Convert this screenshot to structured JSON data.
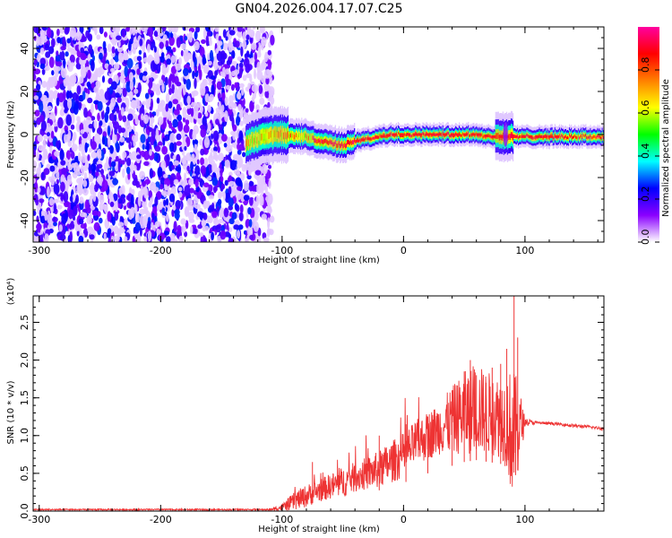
{
  "figure": {
    "title": "GN04.2026.004.17.07.C25"
  },
  "chart_data": [
    {
      "type": "heatmap",
      "title": "GN04.2026.004.17.07.C25",
      "xlabel": "Height of straight line (km)",
      "ylabel": "Frequency (Hz)",
      "xlim": [
        -305,
        165
      ],
      "ylim": [
        -50,
        50
      ],
      "x_ticks": [
        -300,
        -200,
        -100,
        0,
        100
      ],
      "y_ticks": [
        -40,
        -20,
        0,
        20,
        40
      ],
      "colorbar": {
        "label": "Normalized spectral amplitude",
        "range": [
          0,
          1
        ],
        "ticks": [
          "0.0",
          "0.2",
          "0.4",
          "0.6",
          "0.8"
        ],
        "colormap": [
          "#ffffff",
          "#8a00ff",
          "#0000ff",
          "#00ffff",
          "#00ff00",
          "#ffff00",
          "#ff8000",
          "#ff0000",
          "#ff00a0"
        ]
      },
      "regions": [
        {
          "name": "broadband noise",
          "x_range": [
            -305,
            -108
          ],
          "freq_range": [
            -50,
            50
          ],
          "amplitude": "0.05-0.35"
        },
        {
          "name": "signal band",
          "x_range": [
            -130,
            165
          ],
          "amplitude_peak": 0.95
        }
      ],
      "ridge": {
        "x": [
          -130,
          -115,
          -100,
          -90,
          -80,
          -70,
          -60,
          -50,
          -45,
          -40,
          -30,
          -20,
          -10,
          0,
          10,
          20,
          40,
          60,
          70,
          80,
          90,
          100,
          120,
          140,
          165
        ],
        "freq": [
          -4,
          -1,
          0,
          -1,
          -1,
          -3,
          -4,
          -5,
          -4,
          -3,
          -2,
          -1,
          0,
          0,
          0,
          0,
          0,
          0,
          -1,
          -1,
          -1,
          -1,
          -1,
          -1,
          -1
        ]
      }
    },
    {
      "type": "line",
      "xlabel": "Height of straight line (km)",
      "ylabel": "SNR (10 * v/v)",
      "y_multiplier": "(x10⁴)",
      "xlim": [
        -305,
        165
      ],
      "ylim": [
        0,
        2.85
      ],
      "x_ticks": [
        -300,
        -200,
        -100,
        0,
        100
      ],
      "y_ticks": [
        "0.0",
        "0.5",
        "1.0",
        "1.5",
        "2.0",
        "2.5"
      ],
      "series": [
        {
          "name": "SNR",
          "color": "#ee3333",
          "envelope": {
            "x": [
              -305,
              -110,
              -100,
              -90,
              -80,
              -70,
              -60,
              -50,
              -40,
              -30,
              -20,
              -10,
              0,
              10,
              20,
              30,
              40,
              50,
              60,
              70,
              80,
              85,
              90,
              95,
              100,
              110,
              120,
              130,
              140,
              150,
              165
            ],
            "mean": [
              0.02,
              0.02,
              0.05,
              0.13,
              0.2,
              0.27,
              0.33,
              0.38,
              0.45,
              0.5,
              0.55,
              0.65,
              0.74,
              0.9,
              1.0,
              1.1,
              1.2,
              1.3,
              1.35,
              1.3,
              1.25,
              1.2,
              1.0,
              1.1,
              1.18,
              1.17,
              1.16,
              1.15,
              1.13,
              1.12,
              1.09
            ],
            "noise": [
              0.01,
              0.01,
              0.05,
              0.12,
              0.15,
              0.15,
              0.17,
              0.2,
              0.2,
              0.22,
              0.25,
              0.28,
              0.3,
              0.3,
              0.32,
              0.35,
              0.45,
              0.55,
              0.6,
              0.55,
              0.55,
              0.65,
              0.9,
              0.6,
              0.05,
              0.02,
              0.02,
              0.02,
              0.02,
              0.02,
              0.02
            ]
          },
          "spikes": [
            {
              "x": -75,
              "y": 0.65
            },
            {
              "x": -20,
              "y": 1.0
            },
            {
              "x": 2,
              "y": 1.15
            },
            {
              "x": 20,
              "y": 1.25
            },
            {
              "x": 40,
              "y": 1.6
            },
            {
              "x": 50,
              "y": 1.85
            },
            {
              "x": 55,
              "y": 2.0
            },
            {
              "x": 60,
              "y": 1.8
            },
            {
              "x": 68,
              "y": 1.7
            },
            {
              "x": 73,
              "y": 1.9
            },
            {
              "x": 80,
              "y": 1.95
            },
            {
              "x": 85,
              "y": 2.15
            },
            {
              "x": 91,
              "y": 2.85
            },
            {
              "x": 94,
              "y": 2.3
            }
          ]
        }
      ]
    }
  ]
}
